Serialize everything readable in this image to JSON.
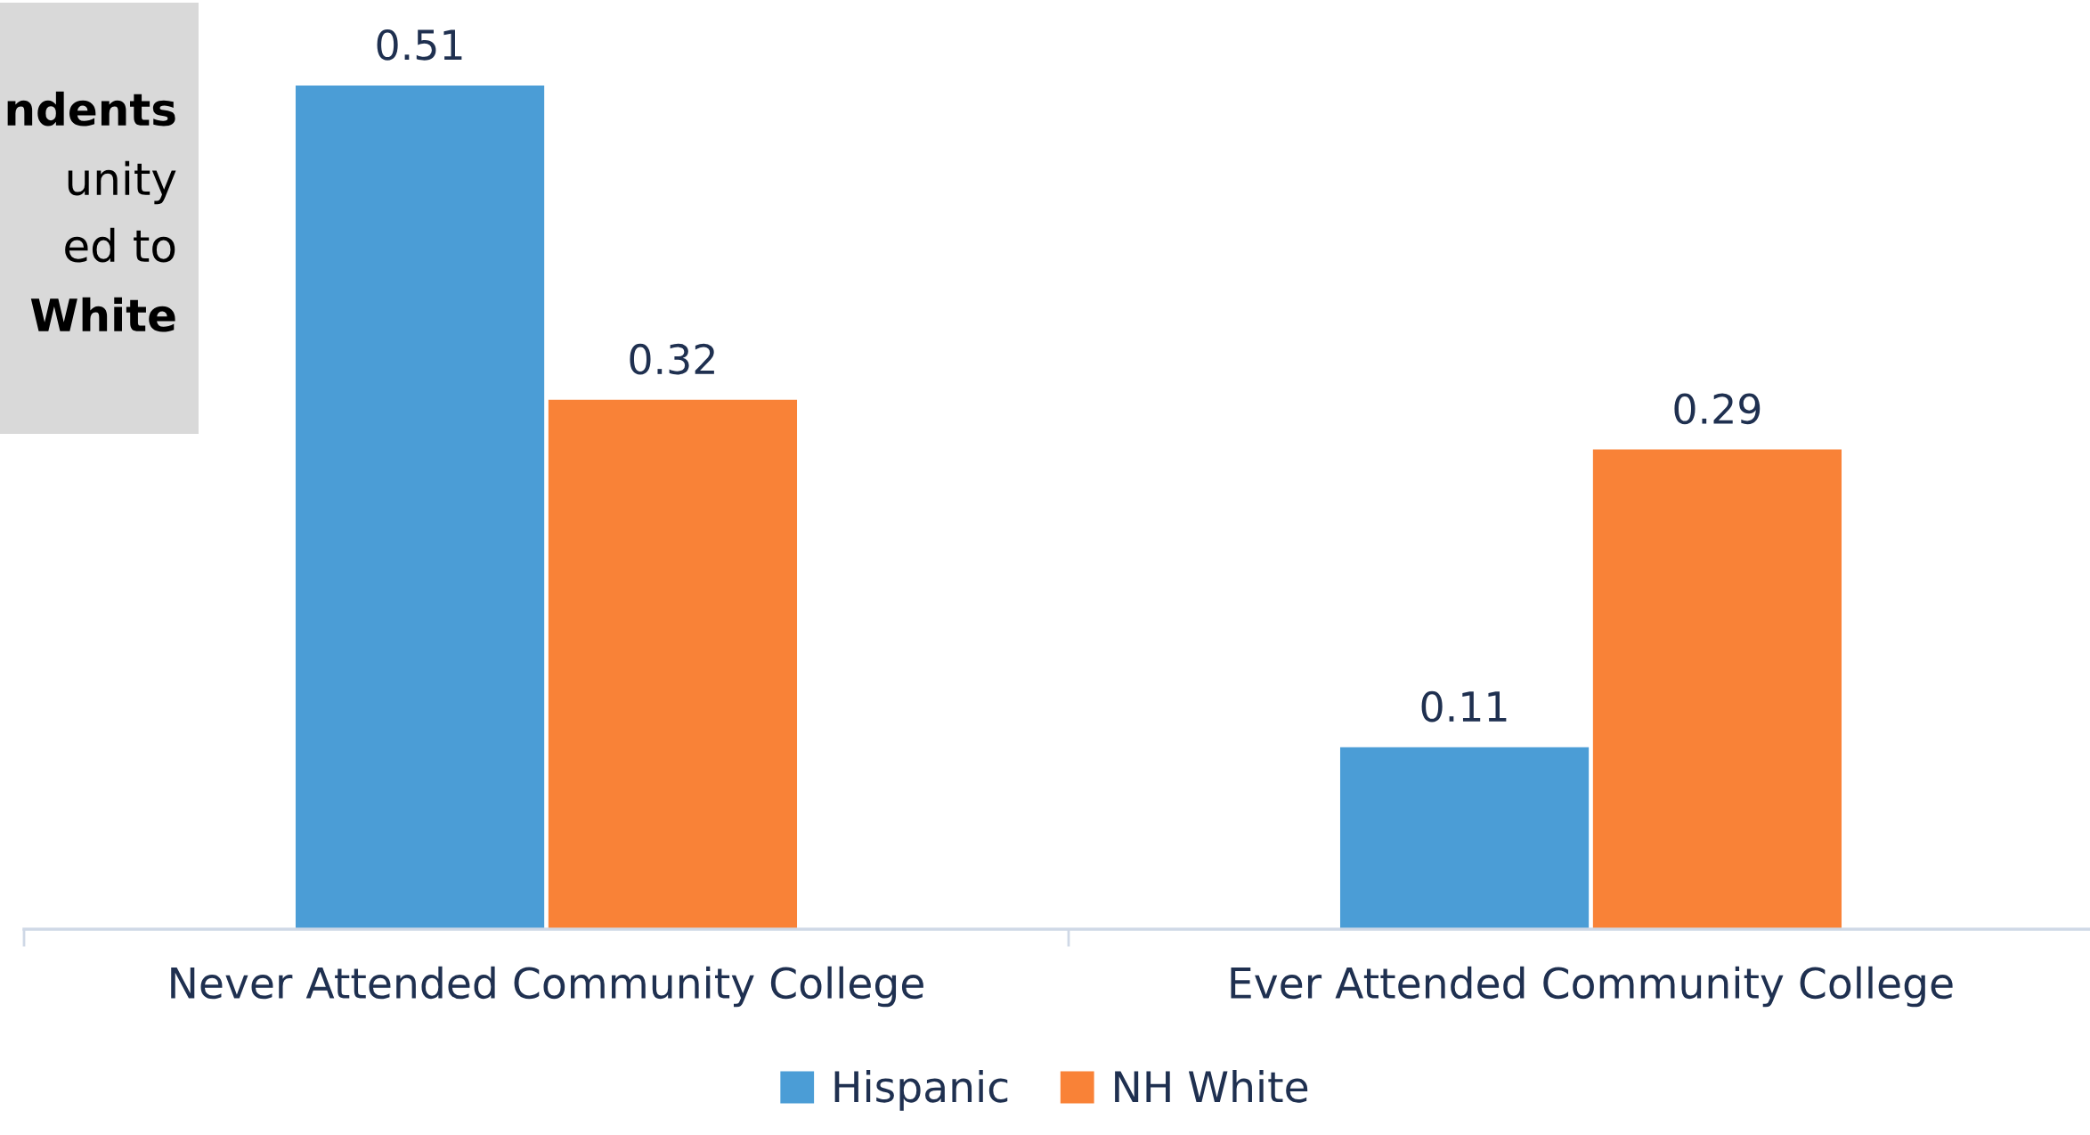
{
  "chart_data": {
    "type": "bar",
    "categories": [
      "Never Attended Community College",
      "Ever Attended Community College"
    ],
    "series": [
      {
        "name": "Hispanic",
        "color": "#4b9dd6",
        "values": [
          0.51,
          0.11
        ]
      },
      {
        "name": "NH White",
        "color": "#f98237",
        "values": [
          0.32,
          0.29
        ]
      }
    ],
    "data_labels": true,
    "legend": "bottom",
    "grid": false,
    "annotations": [
      "ndents",
      "unity",
      "ed to",
      "White"
    ]
  }
}
